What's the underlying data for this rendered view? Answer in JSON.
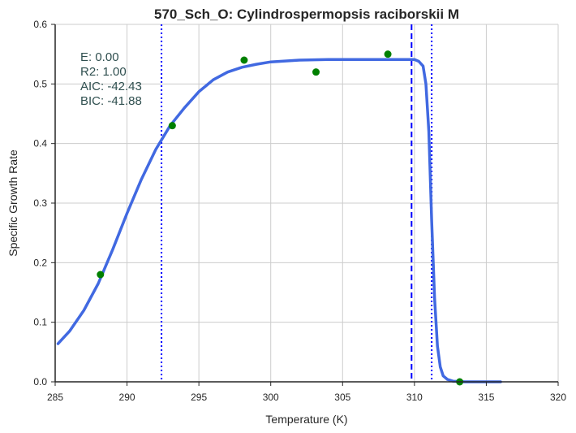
{
  "chart_data": {
    "type": "line",
    "title": "570_Sch_O: Cylindrospermopsis raciborskii M",
    "xlabel": "Temperature (K)",
    "ylabel": "Specific Growth Rate",
    "xlim": [
      285,
      320
    ],
    "ylim": [
      0.0,
      0.6
    ],
    "xticks": [
      285,
      290,
      295,
      300,
      305,
      310,
      315,
      320
    ],
    "xtick_labels": [
      "285",
      "290",
      "295",
      "300",
      "305",
      "310",
      "315",
      "320"
    ],
    "yticks": [
      0.0,
      0.1,
      0.2,
      0.3,
      0.4,
      0.5,
      0.6
    ],
    "ytick_labels": [
      "0.0",
      "0.1",
      "0.2",
      "0.3",
      "0.4",
      "0.5",
      "0.6"
    ],
    "grid": true,
    "annotations": [
      "E:  0.00",
      "R2:  1.00",
      "AIC: -42.43",
      "BIC: -41.88"
    ],
    "series": [
      {
        "kind": "scatter",
        "color": "#008000",
        "x": [
          288.15,
          293.15,
          298.15,
          303.15,
          308.15,
          313.15
        ],
        "y": [
          0.18,
          0.43,
          0.54,
          0.52,
          0.55,
          0.0
        ]
      },
      {
        "kind": "line",
        "color": "#4169e1",
        "x": [
          285.2,
          286.0,
          287.0,
          288.0,
          289.0,
          290.0,
          291.0,
          292.0,
          293.0,
          294.0,
          295.0,
          296.0,
          297.0,
          298.0,
          299.0,
          300.0,
          302.0,
          304.0,
          306.0,
          308.0,
          309.0,
          310.0,
          310.3,
          310.6,
          310.8,
          311.0,
          311.2,
          311.4,
          311.6,
          311.8,
          312.0,
          312.3,
          312.7,
          313.5,
          316.0
        ],
        "y": [
          0.064,
          0.085,
          0.12,
          0.165,
          0.222,
          0.283,
          0.34,
          0.39,
          0.43,
          0.46,
          0.487,
          0.507,
          0.52,
          0.528,
          0.533,
          0.537,
          0.54,
          0.541,
          0.541,
          0.541,
          0.541,
          0.541,
          0.538,
          0.53,
          0.5,
          0.42,
          0.27,
          0.14,
          0.06,
          0.025,
          0.01,
          0.004,
          0.001,
          0.0,
          0.0
        ]
      }
    ],
    "vlines": [
      {
        "x": 292.4,
        "style": "dotted",
        "color": "#0000ff"
      },
      {
        "x": 309.8,
        "style": "dashed",
        "color": "#0000ff"
      },
      {
        "x": 311.2,
        "style": "dotted",
        "color": "#0000ff"
      }
    ]
  }
}
